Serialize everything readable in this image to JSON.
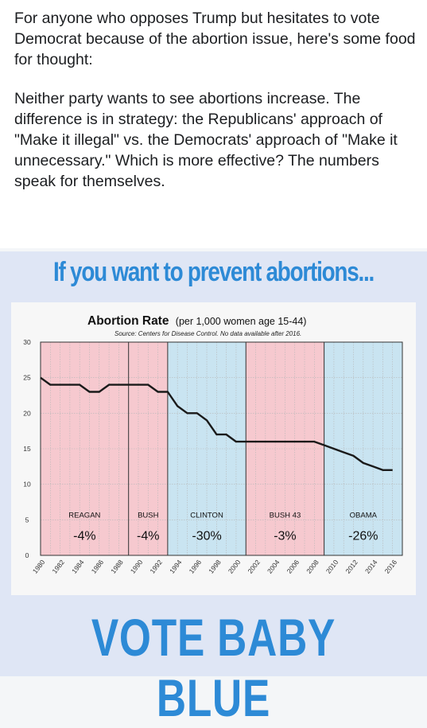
{
  "post": {
    "paragraph1": "For anyone who opposes Trump but hesitates to vote Democrat because of the abortion issue, here's some food for thought:",
    "paragraph2": "Neither party wants to see abortions increase. The difference is in strategy: the Republicans' approach of \"Make it illegal\" vs. the Democrats' approach of \"Make it unnecessary.\" Which is more effective? The numbers speak for themselves."
  },
  "headline": "If you want to prevent abortions...",
  "footer": "VOTE BABY BLUE",
  "colors": {
    "republican": "#f6c9cf",
    "democrat": "#c9e4f1",
    "accent": "#2d8ad6",
    "line": "#1a1a1a"
  },
  "chart_data": {
    "type": "line",
    "title": "Abortion Rate",
    "title_suffix": "(per 1,000 women age 15-44)",
    "subtitle": "Source: Centers for Disease Control. No data available after 2016.",
    "xlabel": "",
    "ylabel": "",
    "xlim": [
      1980,
      2017
    ],
    "ylim": [
      0,
      30
    ],
    "yticks": [
      0,
      5,
      10,
      15,
      20,
      25,
      30
    ],
    "xticks": [
      1980,
      1982,
      1984,
      1986,
      1988,
      1990,
      1992,
      1994,
      1996,
      1998,
      2000,
      2002,
      2004,
      2006,
      2008,
      2010,
      2012,
      2014,
      2016
    ],
    "grid": true,
    "series": [
      {
        "x": [
          1980,
          1981,
          1982,
          1983,
          1984,
          1985,
          1986,
          1987,
          1988,
          1989,
          1990,
          1991,
          1992,
          1993,
          1994,
          1995,
          1996,
          1997,
          1998,
          1999,
          2000,
          2001,
          2002,
          2003,
          2004,
          2005,
          2006,
          2007,
          2008,
          2009,
          2010,
          2011,
          2012,
          2013,
          2014,
          2015,
          2016
        ],
        "values": [
          25,
          24,
          24,
          24,
          24,
          23,
          23,
          24,
          24,
          24,
          24,
          24,
          23,
          23,
          21,
          20,
          20,
          19,
          17,
          17,
          16,
          16,
          16,
          16,
          16,
          16,
          16,
          16,
          16,
          15.5,
          15,
          14.5,
          14,
          13,
          12.5,
          12,
          12
        ]
      }
    ],
    "periods": [
      {
        "name": "REAGAN",
        "change": "-4%",
        "party": "republican",
        "start": 1980,
        "end": 1989
      },
      {
        "name": "BUSH",
        "change": "-4%",
        "party": "republican",
        "start": 1989,
        "end": 1993
      },
      {
        "name": "CLINTON",
        "change": "-30%",
        "party": "democrat",
        "start": 1993,
        "end": 2001
      },
      {
        "name": "BUSH 43",
        "change": "-3%",
        "party": "republican",
        "start": 2001,
        "end": 2009
      },
      {
        "name": "OBAMA",
        "change": "-26%",
        "party": "democrat",
        "start": 2009,
        "end": 2017
      }
    ]
  }
}
